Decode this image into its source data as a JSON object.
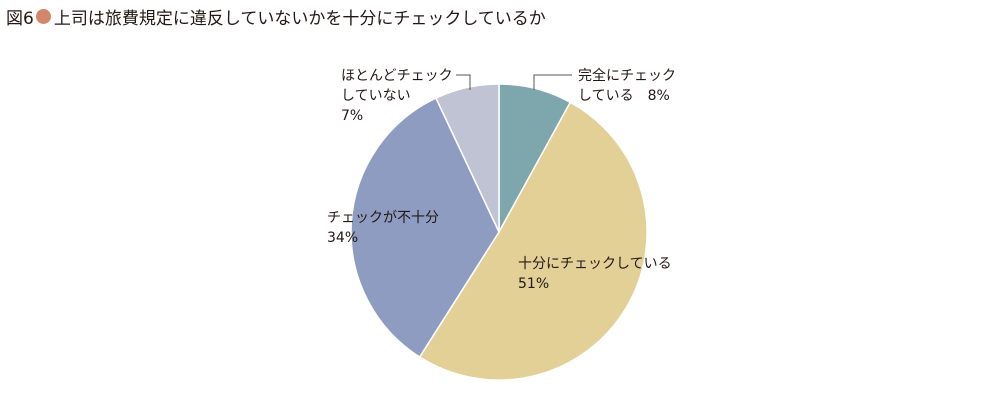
{
  "figure": {
    "number_label": "図6",
    "title": "上司は旅費規定に違反していないかを十分にチェックしているか",
    "dot_color": "#d3876a"
  },
  "chart_data": {
    "type": "pie",
    "start_angle_deg": 0,
    "direction": "clockwise",
    "slices": [
      {
        "label_lines": [
          "完全にチェック",
          "している　8%"
        ],
        "value": 8,
        "color": "#7ea7ad"
      },
      {
        "label_lines": [
          "十分にチェックしている",
          "51%"
        ],
        "value": 51,
        "color": "#e2d097"
      },
      {
        "label_lines": [
          "チェックが不十分",
          "34%"
        ],
        "value": 34,
        "color": "#8f9cc2"
      },
      {
        "label_lines": [
          "ほとんどチェック",
          "していない",
          "7%"
        ],
        "value": 7,
        "color": "#bfc3d4"
      }
    ],
    "slice_edge_color": "#ffffff",
    "leader_line_color": "#555555"
  }
}
